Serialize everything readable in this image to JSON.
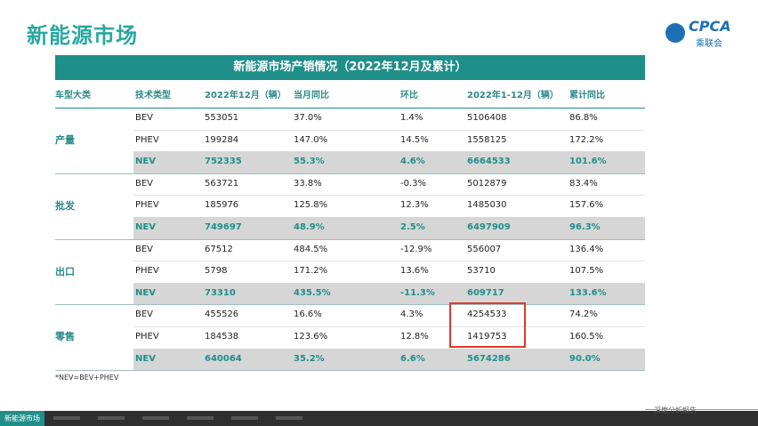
{
  "header": {
    "title": "新能源市场",
    "logo_text": "CPCA",
    "logo_sub": "乘联会"
  },
  "table": {
    "title": "新能源市场产销情况（2022年12月及累计）",
    "headers": [
      "车型大类",
      "技术类型",
      "2022年12月（辆）",
      "当月同比",
      "环比",
      "2022年1-12月（辆）",
      "累计同比"
    ],
    "groups": [
      {
        "label": "产量",
        "rows": [
          [
            "BEV",
            "553051",
            "37.0%",
            "1.4%",
            "5106408",
            "86.8%"
          ],
          [
            "PHEV",
            "199284",
            "147.0%",
            "14.5%",
            "1558125",
            "172.2%"
          ],
          [
            "NEV",
            "752335",
            "55.3%",
            "4.6%",
            "6664533",
            "101.6%"
          ]
        ]
      },
      {
        "label": "批发",
        "rows": [
          [
            "BEV",
            "563721",
            "33.8%",
            "-0.3%",
            "5012879",
            "83.4%"
          ],
          [
            "PHEV",
            "185976",
            "125.8%",
            "12.3%",
            "1485030",
            "157.6%"
          ],
          [
            "NEV",
            "749697",
            "48.9%",
            "2.5%",
            "6497909",
            "96.3%"
          ]
        ]
      },
      {
        "label": "出口",
        "rows": [
          [
            "BEV",
            "67512",
            "484.5%",
            "-12.9%",
            "556007",
            "136.4%"
          ],
          [
            "PHEV",
            "5798",
            "171.2%",
            "13.6%",
            "53710",
            "107.5%"
          ],
          [
            "NEV",
            "73310",
            "435.5%",
            "-11.3%",
            "609717",
            "133.6%"
          ]
        ]
      },
      {
        "label": "零售",
        "rows": [
          [
            "BEV",
            "455526",
            "16.6%",
            "4.3%",
            "4254533",
            "74.2%"
          ],
          [
            "PHEV",
            "184538",
            "123.6%",
            "12.8%",
            "1419753",
            "160.5%"
          ],
          [
            "NEV",
            "640064",
            "35.2%",
            "6.6%",
            "5674286",
            "90.0%"
          ]
        ]
      }
    ],
    "footnote": "*NEV=BEV+PHEV"
  },
  "footer": {
    "tab": "新能源市场",
    "note": "深度分析报告"
  }
}
